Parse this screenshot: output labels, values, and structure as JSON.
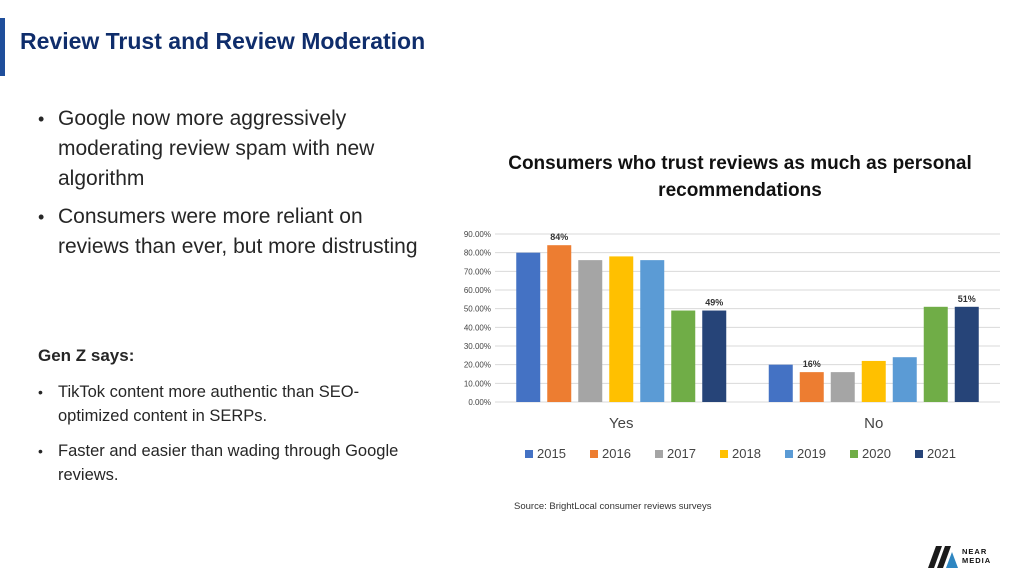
{
  "slide": {
    "title": "Review Trust and Review Moderation",
    "bullets": [
      "Google now more aggressively moderating review spam with new algorithm",
      "Consumers were more reliant on reviews than ever, but more distrusting"
    ],
    "genz_heading": "Gen Z says:",
    "genz_bullets": [
      "TikTok content more authentic than SEO-optimized content in SERPs.",
      "Faster and easier than wading through Google reviews."
    ],
    "source": "Source: BrightLocal consumer reviews surveys",
    "logo": {
      "line1": "NEAR",
      "line2": "MEDIA",
      "icon": "near-media-logo-icon"
    }
  },
  "chart_data": {
    "type": "bar",
    "title": "Consumers who trust reviews as much as personal recommendations",
    "categories": [
      "Yes",
      "No"
    ],
    "series": [
      {
        "name": "2015",
        "color": "#4472c4",
        "values": [
          0.8,
          0.2
        ]
      },
      {
        "name": "2016",
        "color": "#ed7d31",
        "values": [
          0.84,
          0.16
        ]
      },
      {
        "name": "2017",
        "color": "#a5a5a5",
        "values": [
          0.76,
          0.16
        ]
      },
      {
        "name": "2018",
        "color": "#ffc000",
        "values": [
          0.78,
          0.22
        ]
      },
      {
        "name": "2019",
        "color": "#5b9bd5",
        "values": [
          0.76,
          0.24
        ]
      },
      {
        "name": "2020",
        "color": "#70ad47",
        "values": [
          0.49,
          0.51
        ]
      },
      {
        "name": "2021",
        "color": "#264478",
        "values": [
          0.49,
          0.51
        ]
      }
    ],
    "data_labels": [
      {
        "series": "2016",
        "category": "Yes",
        "text": "84%"
      },
      {
        "series": "2021",
        "category": "Yes",
        "text": "49%"
      },
      {
        "series": "2016",
        "category": "No",
        "text": "16%"
      },
      {
        "series": "2021",
        "category": "No",
        "text": "51%"
      }
    ],
    "yticks": [
      "0.00%",
      "10.00%",
      "20.00%",
      "30.00%",
      "40.00%",
      "50.00%",
      "60.00%",
      "70.00%",
      "80.00%",
      "90.00%"
    ],
    "ylim": [
      0,
      0.9
    ],
    "grid": true,
    "legend": "bottom"
  }
}
